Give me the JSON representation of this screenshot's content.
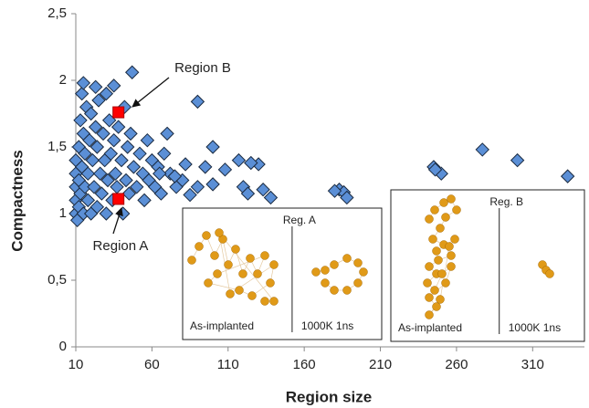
{
  "chart_data": {
    "type": "scatter",
    "x_label": "Region size",
    "y_label": "Compactness",
    "xlim": [
      10,
      344
    ],
    "xticks": [
      10,
      60,
      110,
      160,
      210,
      260,
      310
    ],
    "ylim": [
      0,
      2.5
    ],
    "yticks": [
      0,
      {
        "value": 0.5,
        "label": "0,5"
      },
      1,
      {
        "value": 1.5,
        "label": "1,5"
      },
      2,
      {
        "value": 2.5,
        "label": "2,5"
      }
    ],
    "series": [
      {
        "color": "#5b8fd6",
        "marker": "diamond",
        "x": [
          10,
          10,
          10,
          10,
          10,
          11,
          12,
          12,
          12,
          13,
          13,
          14,
          14,
          15,
          15,
          16,
          16,
          17,
          18,
          18,
          19,
          20,
          20,
          21,
          22,
          23,
          24,
          24,
          25,
          26,
          27,
          28,
          29,
          30,
          30,
          31,
          32,
          33,
          34,
          35,
          36,
          37,
          38,
          40,
          41,
          42,
          43,
          44,
          45,
          46,
          48,
          50,
          52,
          54,
          55,
          57,
          58,
          60,
          62,
          64,
          66,
          68,
          72,
          76,
          80,
          47,
          15,
          23,
          35,
          90,
          100,
          70,
          117,
          130,
          125,
          108,
          95,
          82,
          120,
          133,
          138,
          123,
          100,
          90,
          85,
          75,
          65,
          183,
          186,
          188,
          180,
          245,
          250,
          277,
          300,
          333,
          246
        ],
        "values": [
          1.0,
          1.1,
          1.2,
          1.3,
          1.4,
          0.95,
          1.05,
          1.25,
          1.5,
          1.15,
          1.7,
          1.35,
          1.9,
          1.0,
          1.6,
          1.2,
          1.45,
          1.8,
          1.1,
          1.3,
          1.55,
          1.0,
          1.75,
          1.4,
          1.2,
          1.65,
          1.05,
          1.5,
          1.85,
          1.3,
          1.15,
          1.6,
          1.4,
          1.0,
          1.9,
          1.25,
          1.7,
          1.45,
          1.1,
          1.55,
          1.3,
          1.2,
          1.65,
          1.4,
          1.0,
          1.8,
          1.25,
          1.5,
          1.15,
          1.6,
          1.35,
          1.2,
          1.45,
          1.3,
          1.1,
          1.55,
          1.25,
          1.4,
          1.2,
          1.35,
          1.15,
          1.45,
          1.3,
          1.2,
          1.25,
          2.06,
          1.98,
          1.95,
          1.96,
          1.84,
          1.5,
          1.6,
          1.4,
          1.37,
          1.38,
          1.33,
          1.35,
          1.37,
          1.2,
          1.18,
          1.12,
          1.15,
          1.22,
          1.2,
          1.14,
          1.28,
          1.3,
          1.18,
          1.16,
          1.12,
          1.17,
          1.35,
          1.3,
          1.48,
          1.4,
          1.28,
          1.33
        ]
      },
      {
        "color": "#ff0000",
        "marker": "square",
        "x": [
          38,
          38
        ],
        "values": [
          1.11,
          1.76
        ]
      }
    ],
    "annotations": [
      "Region B",
      "Region A"
    ],
    "insets": [
      {
        "title": "Reg. A",
        "left_label": "As-implanted",
        "right_label": "1000K 1ns"
      },
      {
        "title": "Reg. B",
        "left_label": "As-implanted",
        "right_label": "1000K 1ns"
      }
    ]
  }
}
